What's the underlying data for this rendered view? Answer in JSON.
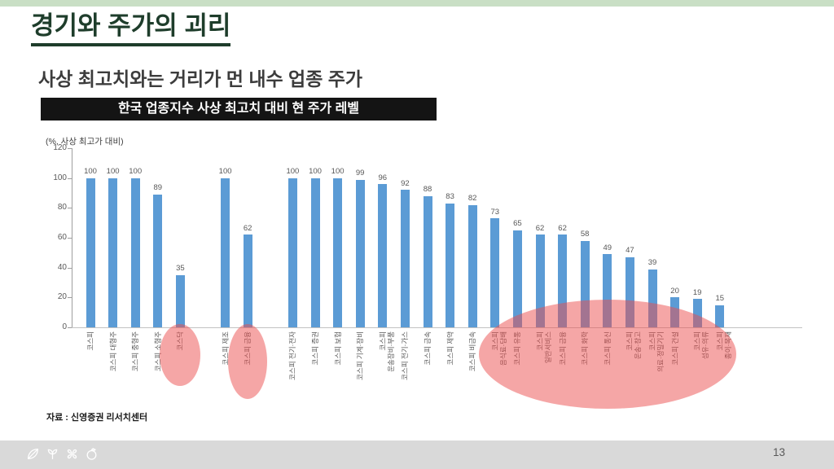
{
  "slide": {
    "title": "경기와 주가의 괴리",
    "subtitle": "사상 최고치와는 거리가 먼 내수 업종 주가",
    "source": "자료 : 신영증권 리서치센터",
    "page_number": "13",
    "accent_bar_color": "#c9dfc5",
    "title_color": "#1e3d2b",
    "footer_icons": [
      "leaf-icon",
      "sprout-icon",
      "clover-icon",
      "fruit-icon"
    ]
  },
  "chart_data": {
    "type": "bar",
    "title": "한국 업종지수 사상 최고치 대비 현 주가 레벨",
    "axis_note": "(%, 사상 최고가 대비)",
    "ylim": [
      0,
      120
    ],
    "yticks": [
      0,
      20,
      40,
      60,
      80,
      100,
      120
    ],
    "grid": false,
    "legend": null,
    "bar_color": "#5b9bd5",
    "groups": [
      {
        "categories": [
          "코스피",
          "코스피 대형주",
          "코스피 중형주",
          "코스피 소형주",
          "코스닥"
        ],
        "values": [
          100,
          100,
          100,
          89,
          35
        ]
      },
      {
        "categories": [
          "코스피 제조",
          "코스피 금융"
        ],
        "values": [
          100,
          62
        ]
      },
      {
        "categories": [
          "코스피 전기·전자",
          "코스피 증권",
          "코스피 보험",
          "코스피 기계·장비",
          "코스피 운송장비·부품",
          "코스피 전기·가스",
          "코스피 금속",
          "코스피 제약",
          "코스피 비금속",
          "코스피 음식료·담배",
          "코스피 유통",
          "코스피 일반서비스",
          "코스피 금융",
          "코스피 화학",
          "코스피 통신",
          "코스피 운송·창고",
          "코스피 의료·정밀기기",
          "코스피 건설",
          "코스피 섬유·의류",
          "코스피 종이·목재"
        ],
        "values": [
          100,
          100,
          100,
          99,
          96,
          92,
          88,
          83,
          82,
          73,
          65,
          62,
          62,
          58,
          49,
          47,
          39,
          20,
          19,
          15
        ]
      }
    ],
    "highlights": {
      "color": "rgba(236,77,77,0.5)",
      "ellipses": [
        {
          "target": "코스닥",
          "bar_index": 4
        },
        {
          "target": "코스피 금융",
          "bar_index": 6
        },
        {
          "target": "코스피 음식료·담배 ~ 코스피 종이·목재",
          "bar_start": 16,
          "bar_end": 26
        }
      ]
    }
  }
}
